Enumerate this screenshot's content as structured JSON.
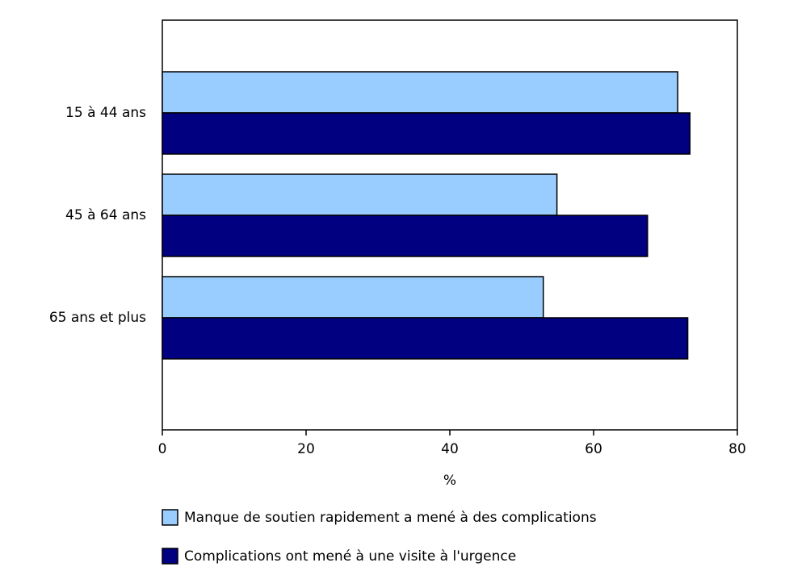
{
  "chart_data": {
    "type": "hbar",
    "x_label": "%",
    "categories": [
      "15 à 44 ans",
      "45 à 64 ans",
      "65 ans et plus"
    ],
    "series": [
      {
        "name": "Manque de soutien rapidement a mené à des complications",
        "color": "#99ccff",
        "values": [
          71.7,
          54.9,
          53.0
        ]
      },
      {
        "name": "Complications ont mené à une visite à l'urgence",
        "color": "#000080",
        "values": [
          73.4,
          67.5,
          73.1
        ]
      }
    ],
    "xlim": [
      0,
      80
    ],
    "xticks": [
      0,
      20,
      40,
      60,
      80
    ],
    "legend": "bottom"
  }
}
